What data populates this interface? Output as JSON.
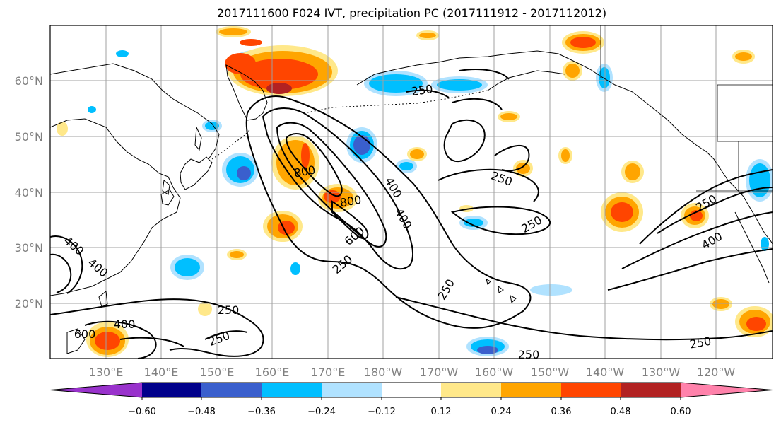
{
  "title": "2017111600 F024 IVT, precipitation PC (2017111912 - 2017112012)",
  "map": {
    "lat_labels": [
      "60°N",
      "50°N",
      "40°N",
      "30°N",
      "20°N"
    ],
    "lon_labels": [
      "130°E",
      "140°E",
      "150°E",
      "160°E",
      "170°E",
      "180°W",
      "170°W",
      "160°W",
      "150°W",
      "140°W",
      "130°W",
      "120°W"
    ],
    "contour_labels": [
      "250",
      "800",
      "800",
      "400",
      "600",
      "250",
      "250",
      "250",
      "250",
      "400",
      "250",
      "400",
      "250",
      "250",
      "400",
      "600",
      "400",
      "250",
      "250",
      "400",
      "250"
    ],
    "contour_levels": [
      250,
      400,
      600,
      800
    ]
  },
  "colorbar": {
    "ticks": [
      "−0.60",
      "−0.48",
      "−0.36",
      "−0.24",
      "−0.12",
      "0.12",
      "0.24",
      "0.36",
      "0.48",
      "0.60"
    ],
    "colors": [
      "#9932cc",
      "#00008b",
      "#3a5fcd",
      "#00bfff",
      "#b0e2ff",
      "#ffffff",
      "#ffe88a",
      "#ffa500",
      "#ff4500",
      "#b22222",
      "#ff82ab"
    ],
    "boundaries": [
      -0.6,
      -0.48,
      -0.36,
      -0.24,
      -0.12,
      0.12,
      0.24,
      0.36,
      0.48,
      0.6
    ]
  }
}
